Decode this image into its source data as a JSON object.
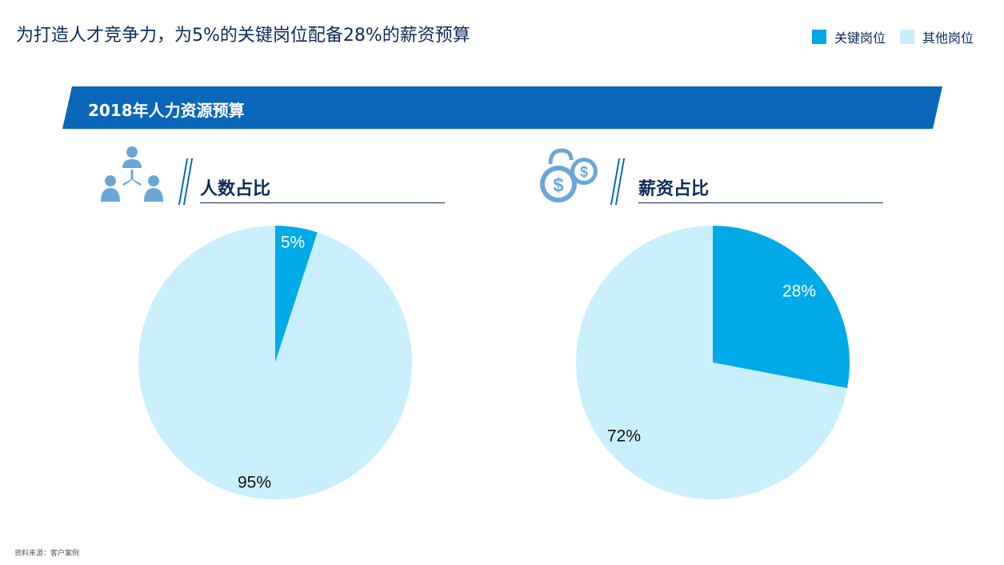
{
  "title": "为打造人才竞争力，为5%的关键岗位配备28%的薪资预算",
  "legend": [
    {
      "label": "关键岗位",
      "color": "#00a9e8"
    },
    {
      "label": "其他岗位",
      "color": "#c9effc"
    }
  ],
  "banner": {
    "title": "2018年人力资源预算"
  },
  "panels": {
    "left": {
      "label": "人数占比",
      "icon": "people-network-icon"
    },
    "right": {
      "label": "薪资占比",
      "icon": "dollar-coins-icon"
    }
  },
  "chart_data": [
    {
      "type": "pie",
      "title": "人数占比",
      "categories": [
        "关键岗位",
        "其他岗位"
      ],
      "values": [
        5,
        95
      ],
      "labels": [
        "5%",
        "95%"
      ],
      "colors": [
        "#00a9e8",
        "#c9effc"
      ]
    },
    {
      "type": "pie",
      "title": "薪资占比",
      "categories": [
        "关键岗位",
        "其他岗位"
      ],
      "values": [
        28,
        72
      ],
      "labels": [
        "28%",
        "72%"
      ],
      "colors": [
        "#00a9e8",
        "#c9effc"
      ]
    }
  ],
  "source": "资料来源：客户案例"
}
